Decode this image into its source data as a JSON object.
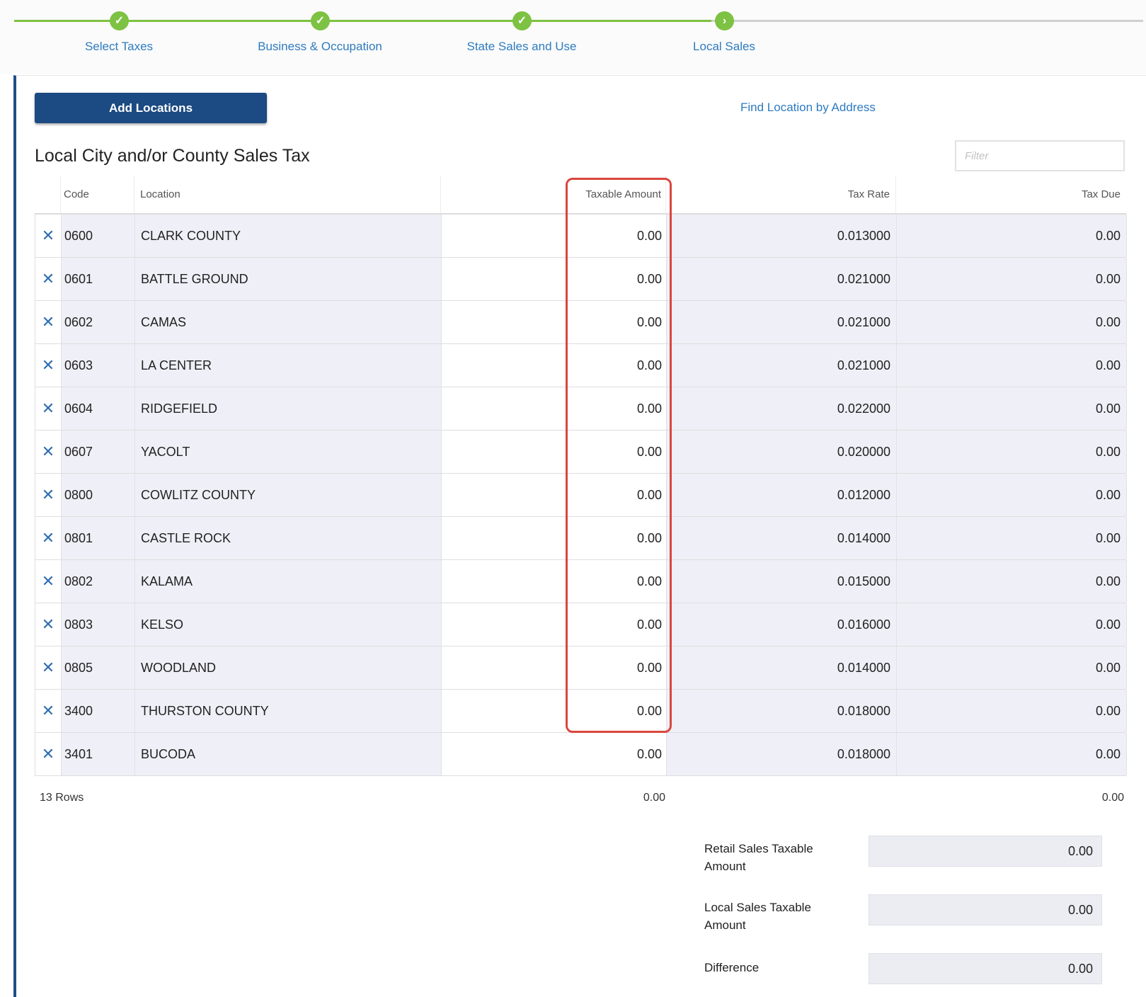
{
  "steps": [
    {
      "label": "Select Taxes",
      "status": "complete",
      "icon": "check-icon",
      "glyph": "✓"
    },
    {
      "label": "Business & Occupation",
      "status": "complete",
      "icon": "check-icon",
      "glyph": "✓"
    },
    {
      "label": "State Sales and Use",
      "status": "complete",
      "icon": "check-icon",
      "glyph": "✓"
    },
    {
      "label": "Local Sales",
      "status": "current",
      "icon": "chevron-right-icon",
      "glyph": "›"
    }
  ],
  "toolbar": {
    "add_locations_label": "Add Locations",
    "find_location_label": "Find Location by Address"
  },
  "section": {
    "title": "Local City and/or County Sales Tax",
    "filter_placeholder": "Filter"
  },
  "table": {
    "headers": {
      "code": "Code",
      "location": "Location",
      "taxable_amount": "Taxable Amount",
      "tax_rate": "Tax Rate",
      "tax_due": "Tax Due"
    },
    "remove_glyph": "✕",
    "rows": [
      {
        "code": "0600",
        "location": "CLARK COUNTY",
        "taxable_amount": "0.00",
        "tax_rate": "0.013000",
        "tax_due": "0.00"
      },
      {
        "code": "0601",
        "location": "BATTLE GROUND",
        "taxable_amount": "0.00",
        "tax_rate": "0.021000",
        "tax_due": "0.00"
      },
      {
        "code": "0602",
        "location": "CAMAS",
        "taxable_amount": "0.00",
        "tax_rate": "0.021000",
        "tax_due": "0.00"
      },
      {
        "code": "0603",
        "location": "LA CENTER",
        "taxable_amount": "0.00",
        "tax_rate": "0.021000",
        "tax_due": "0.00"
      },
      {
        "code": "0604",
        "location": "RIDGEFIELD",
        "taxable_amount": "0.00",
        "tax_rate": "0.022000",
        "tax_due": "0.00"
      },
      {
        "code": "0607",
        "location": "YACOLT",
        "taxable_amount": "0.00",
        "tax_rate": "0.020000",
        "tax_due": "0.00"
      },
      {
        "code": "0800",
        "location": "COWLITZ COUNTY",
        "taxable_amount": "0.00",
        "tax_rate": "0.012000",
        "tax_due": "0.00"
      },
      {
        "code": "0801",
        "location": "CASTLE ROCK",
        "taxable_amount": "0.00",
        "tax_rate": "0.014000",
        "tax_due": "0.00"
      },
      {
        "code": "0802",
        "location": "KALAMA",
        "taxable_amount": "0.00",
        "tax_rate": "0.015000",
        "tax_due": "0.00"
      },
      {
        "code": "0803",
        "location": "KELSO",
        "taxable_amount": "0.00",
        "tax_rate": "0.016000",
        "tax_due": "0.00"
      },
      {
        "code": "0805",
        "location": "WOODLAND",
        "taxable_amount": "0.00",
        "tax_rate": "0.014000",
        "tax_due": "0.00"
      },
      {
        "code": "3400",
        "location": "THURSTON COUNTY",
        "taxable_amount": "0.00",
        "tax_rate": "0.018000",
        "tax_due": "0.00"
      },
      {
        "code": "3401",
        "location": "BUCODA",
        "taxable_amount": "0.00",
        "tax_rate": "0.018000",
        "tax_due": "0.00"
      }
    ],
    "footer": {
      "row_count": "13 Rows",
      "taxable_total": "0.00",
      "tax_due_total": "0.00"
    }
  },
  "summary": {
    "retail_sales_label": "Retail Sales Taxable Amount",
    "retail_sales_value": "0.00",
    "local_sales_label": "Local Sales Taxable Amount",
    "local_sales_value": "0.00",
    "difference_label": "Difference",
    "difference_value": "0.00"
  },
  "colors": {
    "step_complete": "#7dc242",
    "step_pending_line": "#d0d0d0",
    "link": "#2e7bbf",
    "primary_button": "#1c4a82",
    "highlight_border": "#d9473e",
    "row_shade": "#efeff7"
  }
}
